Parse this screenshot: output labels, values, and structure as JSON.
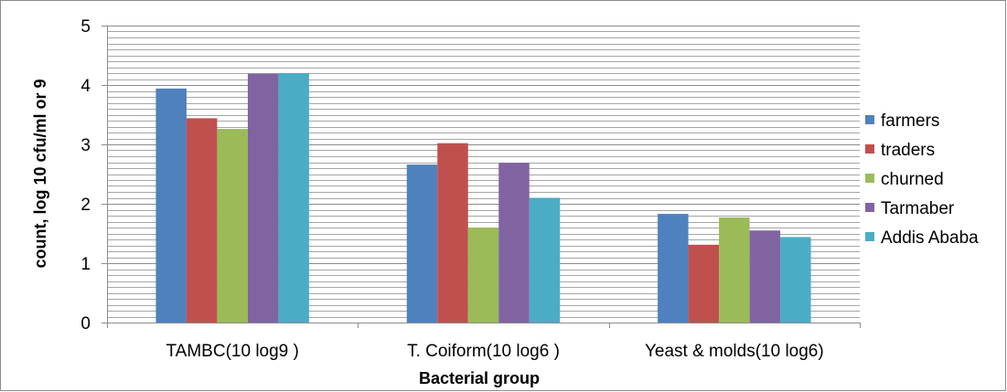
{
  "chart_data": {
    "type": "bar",
    "categories": [
      "TAMBC(10 log9 )",
      "T. Coiform(10 log6 )",
      "Yeast & molds(10 log6)"
    ],
    "series": [
      {
        "name": "farmers",
        "color": "#4F81BD",
        "values": [
          3.94,
          2.66,
          1.83
        ]
      },
      {
        "name": "traders",
        "color": "#C0504D",
        "values": [
          3.44,
          3.02,
          1.31
        ]
      },
      {
        "name": "churned",
        "color": "#9BBB59",
        "values": [
          3.26,
          1.6,
          1.77
        ]
      },
      {
        "name": "Tarmaber",
        "color": "#8064A2",
        "values": [
          4.19,
          2.69,
          1.55
        ]
      },
      {
        "name": "Addis Ababa",
        "color": "#4BACC6",
        "values": [
          4.2,
          2.1,
          1.44
        ]
      }
    ],
    "xlabel": "Bacterial group",
    "ylabel": "count, log 10 cfu/ml or  9",
    "ylim": [
      0,
      5
    ],
    "yticks": [
      "0",
      "1",
      "2",
      "3",
      "4",
      "5"
    ],
    "grid": true,
    "legend_position": "right"
  }
}
